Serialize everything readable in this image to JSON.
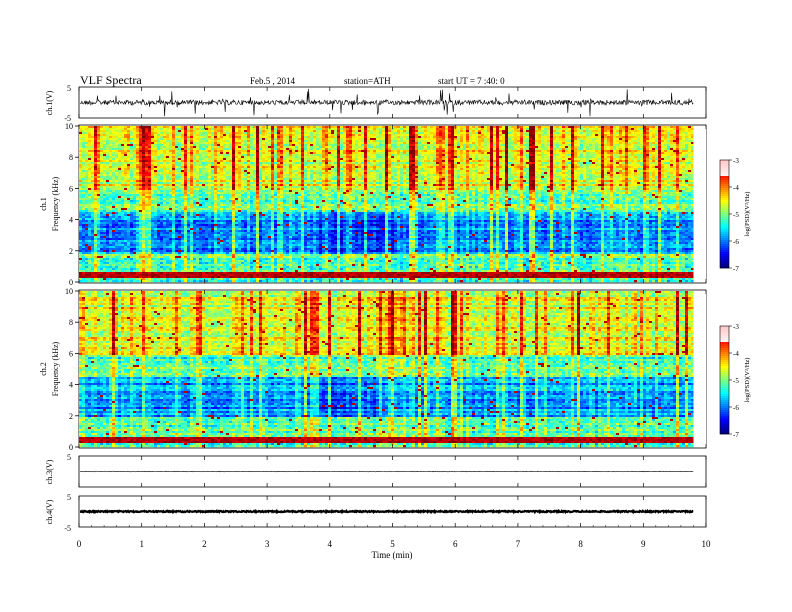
{
  "header": {
    "title": "VLF  Spectra",
    "date": "Feb.5  , 2014",
    "station": "station=ATH",
    "start": "start  UT  =   7  :40: 0"
  },
  "chart_data": [
    {
      "type": "line",
      "ylabel": "ch.1(V)",
      "yticks": [
        "5",
        "-5"
      ],
      "ylim": [
        -5,
        5
      ],
      "description_values": {
        "baseline": 0,
        "noise_spikes": true
      }
    },
    {
      "type": "heatmap",
      "ylabel_channel": "ch.1",
      "ylabel": "Frequency  (kHz)",
      "ylim": [
        0,
        10
      ],
      "yticks": [
        "0",
        "2",
        "4",
        "6",
        "8",
        "10"
      ],
      "colorbar": {
        "label": "log(PSD)(V²/Hz)",
        "ticks": [
          "-3",
          "-4",
          "-5",
          "-6",
          "-7"
        ],
        "range": [
          -7,
          -3
        ]
      },
      "features": {
        "low_band_khz": [
          0.3,
          0.7
        ],
        "high_activity_above_khz": 6,
        "quiet_band_khz": [
          1.8,
          4.5
        ],
        "quiet_interval_min": [
          3.8,
          5.0
        ]
      }
    },
    {
      "type": "heatmap",
      "ylabel_channel": "ch.2",
      "ylabel": "Frequency  (kHz)",
      "ylim": [
        0,
        10
      ],
      "yticks": [
        "0",
        "2",
        "4",
        "6",
        "8",
        "10"
      ],
      "colorbar": {
        "label": "log(PSD)(V²/Hz)",
        "ticks": [
          "-3",
          "-4",
          "-5",
          "-6",
          "-7"
        ],
        "range": [
          -7,
          -3
        ]
      },
      "features": {
        "low_band_khz": [
          0.3,
          0.7
        ],
        "high_activity_above_khz": 6,
        "quiet_band_khz": [
          2.0,
          4.5
        ],
        "quiet_interval_min": [
          3.6,
          5.2
        ]
      }
    },
    {
      "type": "line",
      "ylabel": "ch.3(V)",
      "yticks": [
        "5"
      ],
      "ylim": [
        -5,
        5
      ],
      "description_values": {
        "baseline": 0
      }
    },
    {
      "type": "line",
      "ylabel": "ch.4(V)",
      "yticks": [
        "5",
        "-5"
      ],
      "ylim": [
        -5,
        5
      ],
      "description_values": {
        "baseline": 0
      }
    }
  ],
  "xaxis": {
    "label": "Time  (min)",
    "ticks": [
      "0",
      "1",
      "2",
      "3",
      "4",
      "5",
      "6",
      "7",
      "8",
      "9",
      "10"
    ],
    "xlim": [
      0,
      10
    ],
    "data_end": 9.8
  }
}
